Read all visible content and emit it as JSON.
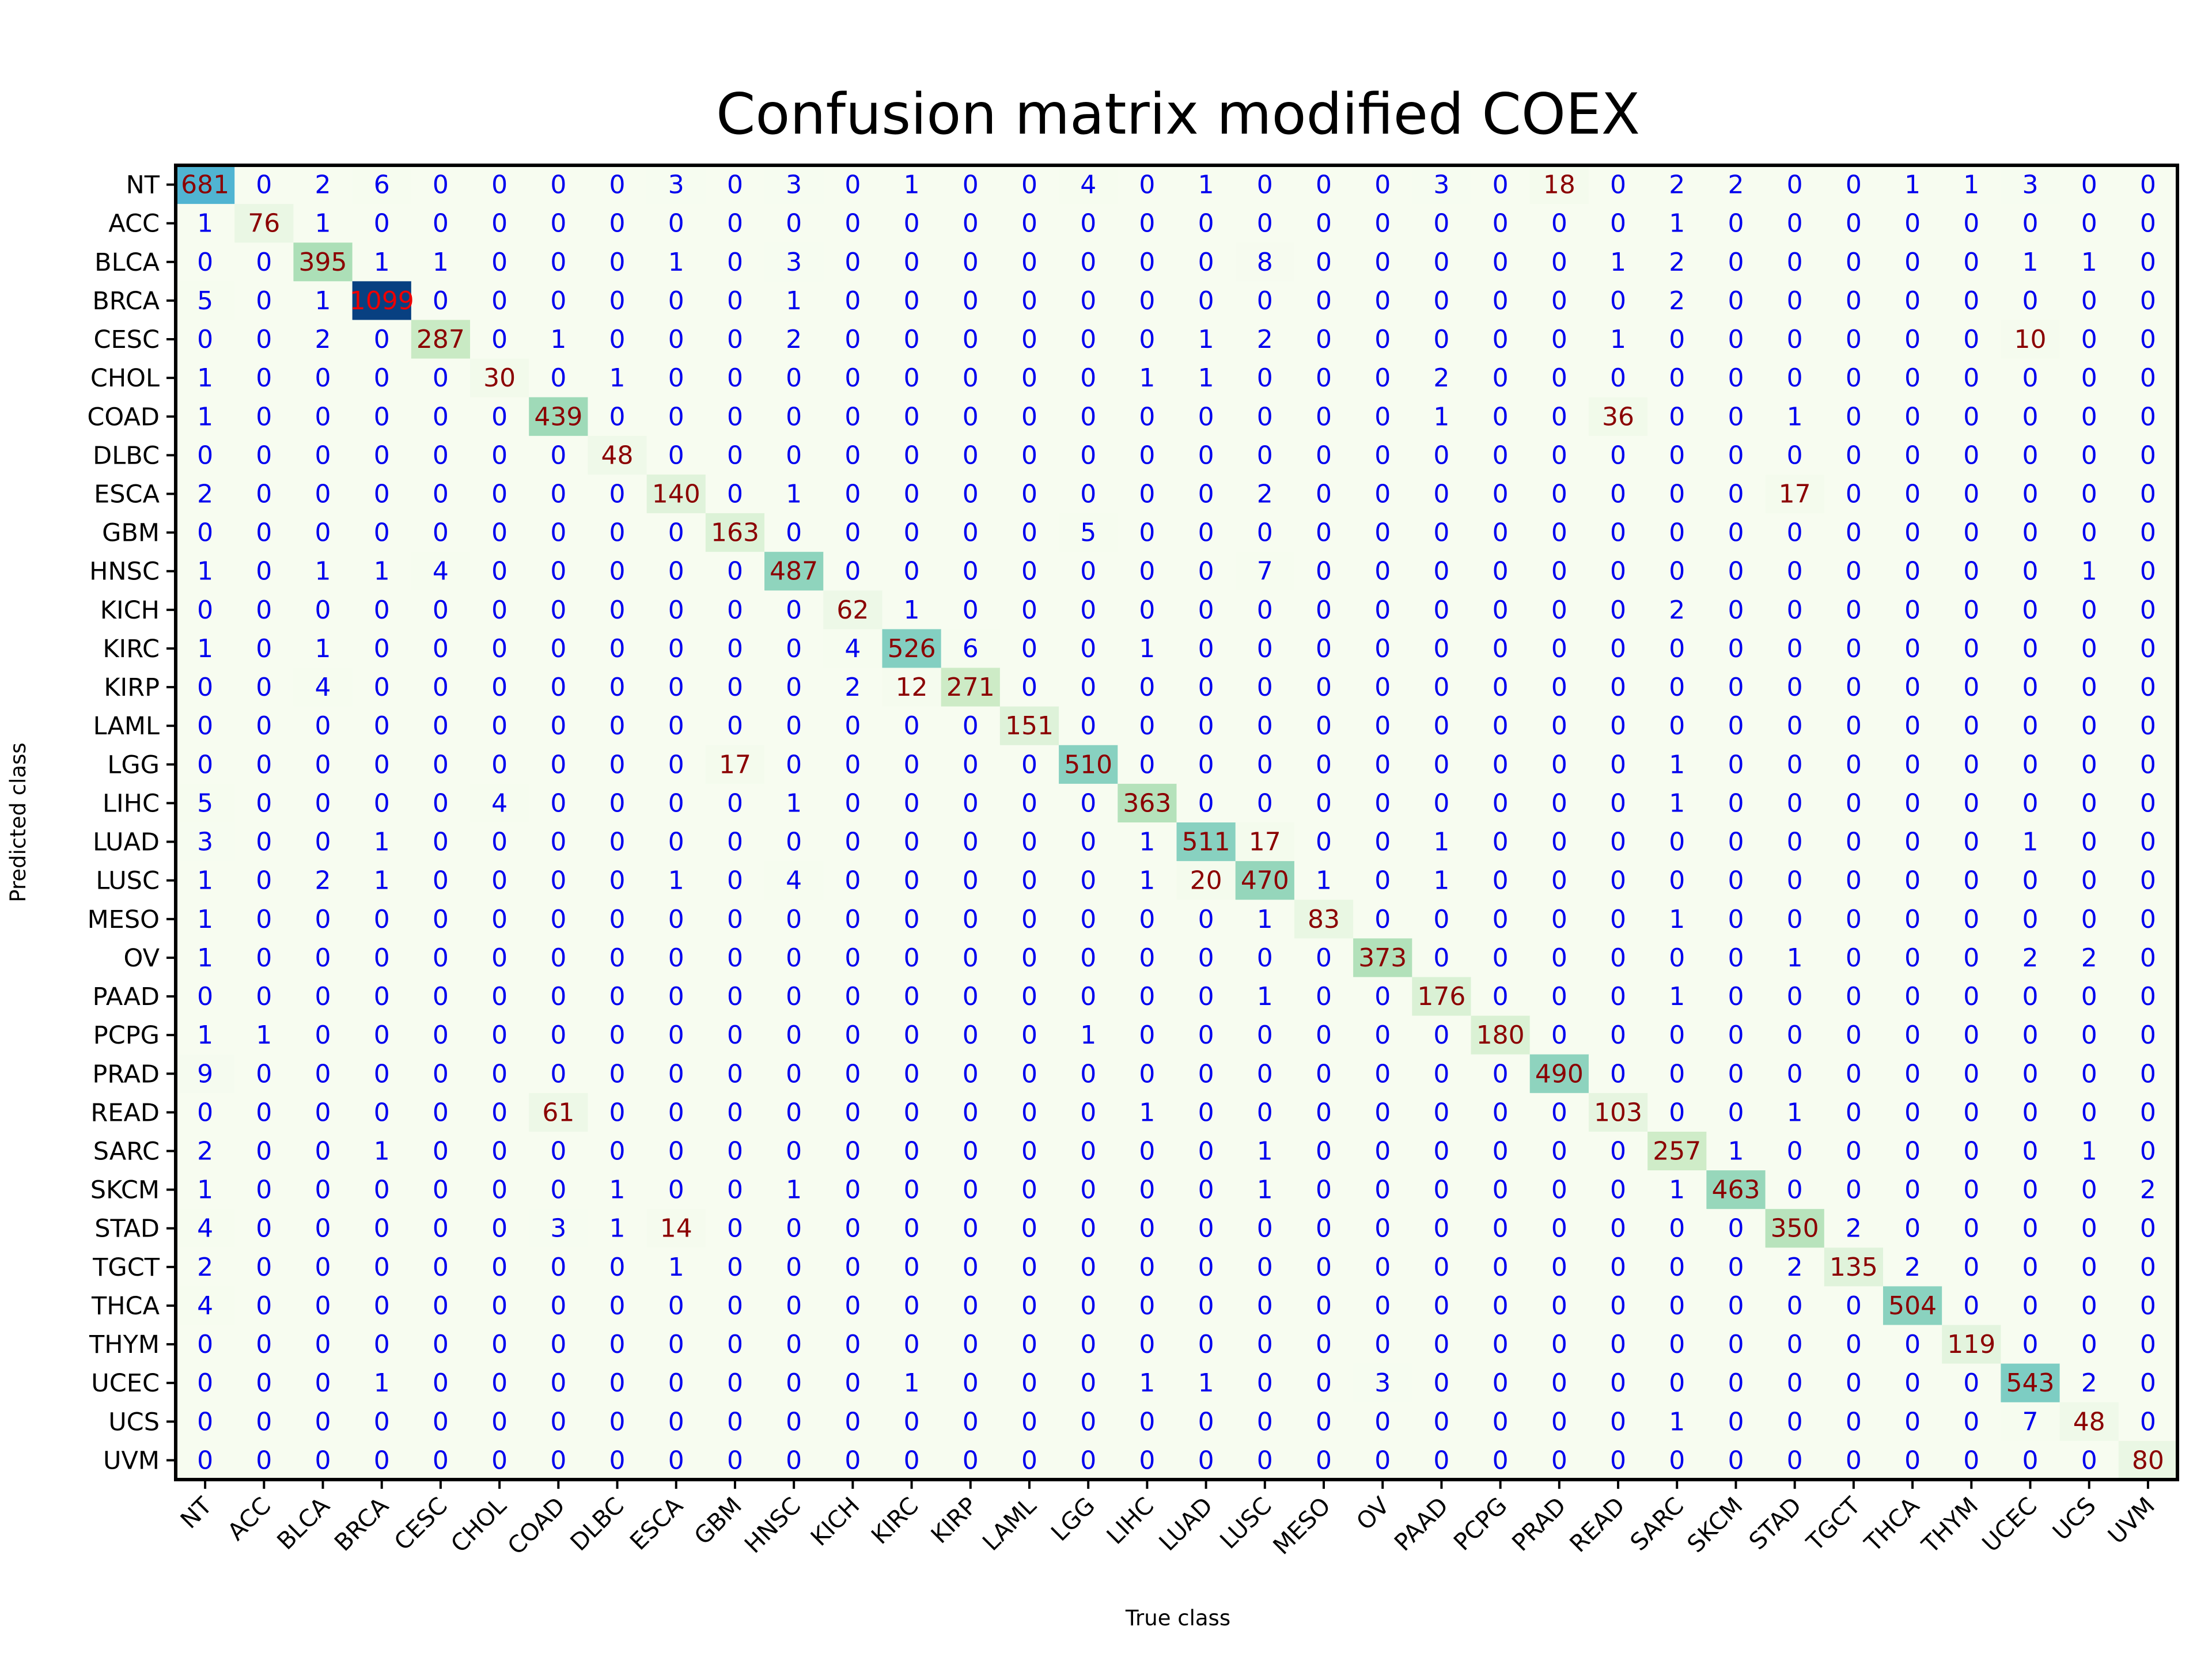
{
  "chart_data": {
    "type": "heatmap",
    "title": "Confusion matrix modified COEX",
    "xlabel": "True class",
    "ylabel": "Predicted class",
    "x_categories": [
      "NT",
      "ACC",
      "BLCA",
      "BRCA",
      "CESC",
      "CHOL",
      "COAD",
      "DLBC",
      "ESCA",
      "GBM",
      "HNSC",
      "KICH",
      "KIRC",
      "KIRP",
      "LAML",
      "LGG",
      "LIHC",
      "LUAD",
      "LUSC",
      "MESO",
      "OV",
      "PAAD",
      "PCPG",
      "PRAD",
      "READ",
      "SARC",
      "SKCM",
      "STAD",
      "TGCT",
      "THCA",
      "THYM",
      "UCEC",
      "UCS",
      "UVM"
    ],
    "y_categories": [
      "NT",
      "ACC",
      "BLCA",
      "BRCA",
      "CESC",
      "CHOL",
      "COAD",
      "DLBC",
      "ESCA",
      "GBM",
      "HNSC",
      "KICH",
      "KIRC",
      "KIRP",
      "LAML",
      "LGG",
      "LIHC",
      "LUAD",
      "LUSC",
      "MESO",
      "OV",
      "PAAD",
      "PCPG",
      "PRAD",
      "READ",
      "SARC",
      "SKCM",
      "STAD",
      "TGCT",
      "THCA",
      "THYM",
      "UCEC",
      "UCS",
      "UVM"
    ],
    "values": [
      [
        681,
        0,
        2,
        6,
        0,
        0,
        0,
        0,
        3,
        0,
        3,
        0,
        1,
        0,
        0,
        4,
        0,
        1,
        0,
        0,
        0,
        3,
        0,
        18,
        0,
        2,
        2,
        0,
        0,
        1,
        1,
        3,
        0,
        0
      ],
      [
        1,
        76,
        1,
        0,
        0,
        0,
        0,
        0,
        0,
        0,
        0,
        0,
        0,
        0,
        0,
        0,
        0,
        0,
        0,
        0,
        0,
        0,
        0,
        0,
        0,
        1,
        0,
        0,
        0,
        0,
        0,
        0,
        0,
        0
      ],
      [
        0,
        0,
        395,
        1,
        1,
        0,
        0,
        0,
        1,
        0,
        3,
        0,
        0,
        0,
        0,
        0,
        0,
        0,
        8,
        0,
        0,
        0,
        0,
        0,
        1,
        2,
        0,
        0,
        0,
        0,
        0,
        1,
        1,
        0
      ],
      [
        5,
        0,
        1,
        1099,
        0,
        0,
        0,
        0,
        0,
        0,
        1,
        0,
        0,
        0,
        0,
        0,
        0,
        0,
        0,
        0,
        0,
        0,
        0,
        0,
        0,
        2,
        0,
        0,
        0,
        0,
        0,
        0,
        0,
        0
      ],
      [
        0,
        0,
        2,
        0,
        287,
        0,
        1,
        0,
        0,
        0,
        2,
        0,
        0,
        0,
        0,
        0,
        0,
        1,
        2,
        0,
        0,
        0,
        0,
        0,
        1,
        0,
        0,
        0,
        0,
        0,
        0,
        10,
        0,
        0
      ],
      [
        1,
        0,
        0,
        0,
        0,
        30,
        0,
        1,
        0,
        0,
        0,
        0,
        0,
        0,
        0,
        0,
        1,
        1,
        0,
        0,
        0,
        2,
        0,
        0,
        0,
        0,
        0,
        0,
        0,
        0,
        0,
        0,
        0,
        0
      ],
      [
        1,
        0,
        0,
        0,
        0,
        0,
        439,
        0,
        0,
        0,
        0,
        0,
        0,
        0,
        0,
        0,
        0,
        0,
        0,
        0,
        0,
        1,
        0,
        0,
        36,
        0,
        0,
        1,
        0,
        0,
        0,
        0,
        0,
        0
      ],
      [
        0,
        0,
        0,
        0,
        0,
        0,
        0,
        48,
        0,
        0,
        0,
        0,
        0,
        0,
        0,
        0,
        0,
        0,
        0,
        0,
        0,
        0,
        0,
        0,
        0,
        0,
        0,
        0,
        0,
        0,
        0,
        0,
        0,
        0
      ],
      [
        2,
        0,
        0,
        0,
        0,
        0,
        0,
        0,
        140,
        0,
        1,
        0,
        0,
        0,
        0,
        0,
        0,
        0,
        2,
        0,
        0,
        0,
        0,
        0,
        0,
        0,
        0,
        17,
        0,
        0,
        0,
        0,
        0,
        0
      ],
      [
        0,
        0,
        0,
        0,
        0,
        0,
        0,
        0,
        0,
        163,
        0,
        0,
        0,
        0,
        0,
        5,
        0,
        0,
        0,
        0,
        0,
        0,
        0,
        0,
        0,
        0,
        0,
        0,
        0,
        0,
        0,
        0,
        0,
        0
      ],
      [
        1,
        0,
        1,
        1,
        4,
        0,
        0,
        0,
        0,
        0,
        487,
        0,
        0,
        0,
        0,
        0,
        0,
        0,
        7,
        0,
        0,
        0,
        0,
        0,
        0,
        0,
        0,
        0,
        0,
        0,
        0,
        0,
        1,
        0
      ],
      [
        0,
        0,
        0,
        0,
        0,
        0,
        0,
        0,
        0,
        0,
        0,
        62,
        1,
        0,
        0,
        0,
        0,
        0,
        0,
        0,
        0,
        0,
        0,
        0,
        0,
        2,
        0,
        0,
        0,
        0,
        0,
        0,
        0,
        0
      ],
      [
        1,
        0,
        1,
        0,
        0,
        0,
        0,
        0,
        0,
        0,
        0,
        4,
        526,
        6,
        0,
        0,
        1,
        0,
        0,
        0,
        0,
        0,
        0,
        0,
        0,
        0,
        0,
        0,
        0,
        0,
        0,
        0,
        0,
        0
      ],
      [
        0,
        0,
        4,
        0,
        0,
        0,
        0,
        0,
        0,
        0,
        0,
        2,
        12,
        271,
        0,
        0,
        0,
        0,
        0,
        0,
        0,
        0,
        0,
        0,
        0,
        0,
        0,
        0,
        0,
        0,
        0,
        0,
        0,
        0
      ],
      [
        0,
        0,
        0,
        0,
        0,
        0,
        0,
        0,
        0,
        0,
        0,
        0,
        0,
        0,
        151,
        0,
        0,
        0,
        0,
        0,
        0,
        0,
        0,
        0,
        0,
        0,
        0,
        0,
        0,
        0,
        0,
        0,
        0,
        0
      ],
      [
        0,
        0,
        0,
        0,
        0,
        0,
        0,
        0,
        0,
        17,
        0,
        0,
        0,
        0,
        0,
        510,
        0,
        0,
        0,
        0,
        0,
        0,
        0,
        0,
        0,
        1,
        0,
        0,
        0,
        0,
        0,
        0,
        0,
        0
      ],
      [
        5,
        0,
        0,
        0,
        0,
        4,
        0,
        0,
        0,
        0,
        1,
        0,
        0,
        0,
        0,
        0,
        363,
        0,
        0,
        0,
        0,
        0,
        0,
        0,
        0,
        1,
        0,
        0,
        0,
        0,
        0,
        0,
        0,
        0
      ],
      [
        3,
        0,
        0,
        1,
        0,
        0,
        0,
        0,
        0,
        0,
        0,
        0,
        0,
        0,
        0,
        0,
        1,
        511,
        17,
        0,
        0,
        1,
        0,
        0,
        0,
        0,
        0,
        0,
        0,
        0,
        0,
        1,
        0,
        0
      ],
      [
        1,
        0,
        2,
        1,
        0,
        0,
        0,
        0,
        1,
        0,
        4,
        0,
        0,
        0,
        0,
        0,
        1,
        20,
        470,
        1,
        0,
        1,
        0,
        0,
        0,
        0,
        0,
        0,
        0,
        0,
        0,
        0,
        0,
        0
      ],
      [
        1,
        0,
        0,
        0,
        0,
        0,
        0,
        0,
        0,
        0,
        0,
        0,
        0,
        0,
        0,
        0,
        0,
        0,
        1,
        83,
        0,
        0,
        0,
        0,
        0,
        1,
        0,
        0,
        0,
        0,
        0,
        0,
        0,
        0
      ],
      [
        1,
        0,
        0,
        0,
        0,
        0,
        0,
        0,
        0,
        0,
        0,
        0,
        0,
        0,
        0,
        0,
        0,
        0,
        0,
        0,
        373,
        0,
        0,
        0,
        0,
        0,
        0,
        1,
        0,
        0,
        0,
        2,
        2,
        0
      ],
      [
        0,
        0,
        0,
        0,
        0,
        0,
        0,
        0,
        0,
        0,
        0,
        0,
        0,
        0,
        0,
        0,
        0,
        0,
        1,
        0,
        0,
        176,
        0,
        0,
        0,
        1,
        0,
        0,
        0,
        0,
        0,
        0,
        0,
        0
      ],
      [
        1,
        1,
        0,
        0,
        0,
        0,
        0,
        0,
        0,
        0,
        0,
        0,
        0,
        0,
        0,
        1,
        0,
        0,
        0,
        0,
        0,
        0,
        180,
        0,
        0,
        0,
        0,
        0,
        0,
        0,
        0,
        0,
        0,
        0
      ],
      [
        9,
        0,
        0,
        0,
        0,
        0,
        0,
        0,
        0,
        0,
        0,
        0,
        0,
        0,
        0,
        0,
        0,
        0,
        0,
        0,
        0,
        0,
        0,
        490,
        0,
        0,
        0,
        0,
        0,
        0,
        0,
        0,
        0,
        0
      ],
      [
        0,
        0,
        0,
        0,
        0,
        0,
        61,
        0,
        0,
        0,
        0,
        0,
        0,
        0,
        0,
        0,
        1,
        0,
        0,
        0,
        0,
        0,
        0,
        0,
        103,
        0,
        0,
        1,
        0,
        0,
        0,
        0,
        0,
        0
      ],
      [
        2,
        0,
        0,
        1,
        0,
        0,
        0,
        0,
        0,
        0,
        0,
        0,
        0,
        0,
        0,
        0,
        0,
        0,
        1,
        0,
        0,
        0,
        0,
        0,
        0,
        257,
        1,
        0,
        0,
        0,
        0,
        0,
        1,
        0
      ],
      [
        1,
        0,
        0,
        0,
        0,
        0,
        0,
        1,
        0,
        0,
        1,
        0,
        0,
        0,
        0,
        0,
        0,
        0,
        1,
        0,
        0,
        0,
        0,
        0,
        0,
        1,
        463,
        0,
        0,
        0,
        0,
        0,
        0,
        2
      ],
      [
        4,
        0,
        0,
        0,
        0,
        0,
        3,
        1,
        14,
        0,
        0,
        0,
        0,
        0,
        0,
        0,
        0,
        0,
        0,
        0,
        0,
        0,
        0,
        0,
        0,
        0,
        0,
        350,
        2,
        0,
        0,
        0,
        0,
        0
      ],
      [
        2,
        0,
        0,
        0,
        0,
        0,
        0,
        0,
        1,
        0,
        0,
        0,
        0,
        0,
        0,
        0,
        0,
        0,
        0,
        0,
        0,
        0,
        0,
        0,
        0,
        0,
        0,
        2,
        135,
        2,
        0,
        0,
        0,
        0
      ],
      [
        4,
        0,
        0,
        0,
        0,
        0,
        0,
        0,
        0,
        0,
        0,
        0,
        0,
        0,
        0,
        0,
        0,
        0,
        0,
        0,
        0,
        0,
        0,
        0,
        0,
        0,
        0,
        0,
        0,
        504,
        0,
        0,
        0,
        0
      ],
      [
        0,
        0,
        0,
        0,
        0,
        0,
        0,
        0,
        0,
        0,
        0,
        0,
        0,
        0,
        0,
        0,
        0,
        0,
        0,
        0,
        0,
        0,
        0,
        0,
        0,
        0,
        0,
        0,
        0,
        0,
        119,
        0,
        0,
        0
      ],
      [
        0,
        0,
        0,
        1,
        0,
        0,
        0,
        0,
        0,
        0,
        0,
        0,
        1,
        0,
        0,
        0,
        1,
        1,
        0,
        0,
        3,
        0,
        0,
        0,
        0,
        0,
        0,
        0,
        0,
        0,
        0,
        543,
        2,
        0
      ],
      [
        0,
        0,
        0,
        0,
        0,
        0,
        0,
        0,
        0,
        0,
        0,
        0,
        0,
        0,
        0,
        0,
        0,
        0,
        0,
        0,
        0,
        0,
        0,
        0,
        0,
        1,
        0,
        0,
        0,
        0,
        0,
        7,
        48,
        0
      ],
      [
        0,
        0,
        0,
        0,
        0,
        0,
        0,
        0,
        0,
        0,
        0,
        0,
        0,
        0,
        0,
        0,
        0,
        0,
        0,
        0,
        0,
        0,
        0,
        0,
        0,
        0,
        0,
        0,
        0,
        0,
        0,
        0,
        0,
        80
      ]
    ],
    "colormap": "GnBu",
    "text_colors": {
      "zero": "#0000ee",
      "nonzero": "#8b0000",
      "max": "#ee0000"
    },
    "legend": "none"
  }
}
